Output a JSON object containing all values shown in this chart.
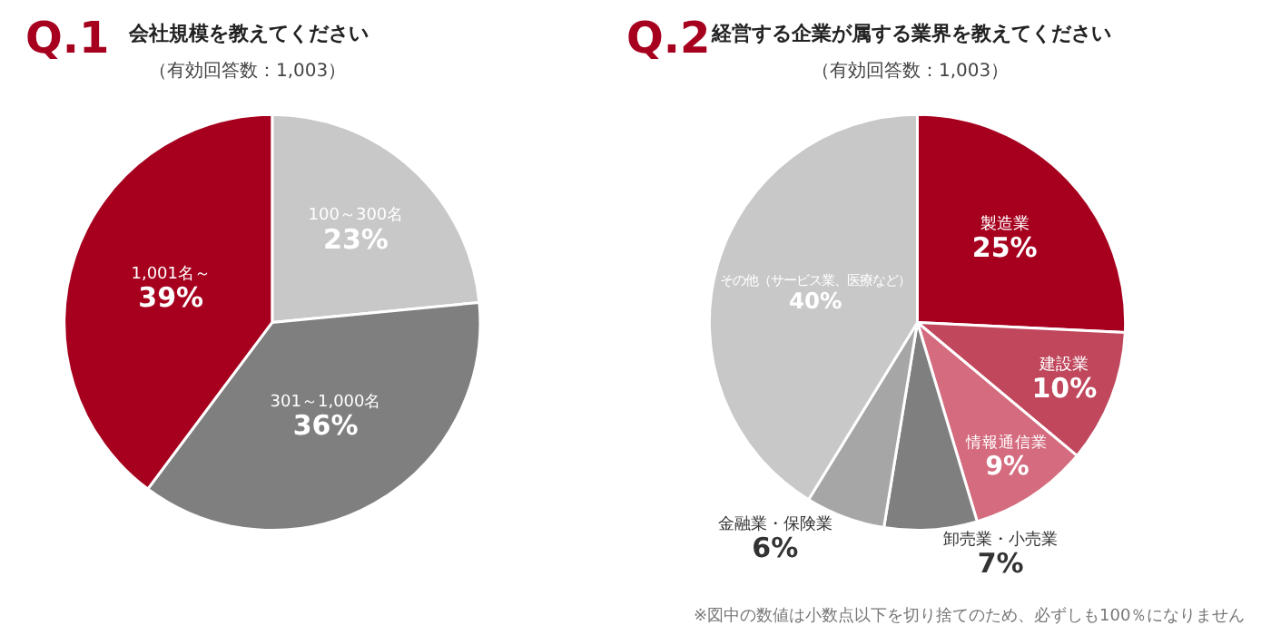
{
  "chart_data": [
    {
      "type": "pie",
      "title": "会社規模を教えてください",
      "subtitle": "（有効回答数：1,003）",
      "annotations": [
        "Q.1"
      ],
      "categories": [
        "100～300名",
        "301～1,000名",
        "1,001名～"
      ],
      "values": [
        23,
        36,
        39
      ],
      "value_labels": [
        "23%",
        "36%",
        "39%"
      ],
      "colors": [
        "#c8c8c8",
        "#7f7f7f",
        "#a6001e"
      ]
    },
    {
      "type": "pie",
      "title": "経営する企業が属する業界を教えてください",
      "subtitle": "（有効回答数：1,003）",
      "annotations": [
        "Q.2",
        "※図中の数値は小数点以下を切り捨てのため、必ずしも100％になりません"
      ],
      "categories": [
        "製造業",
        "建設業",
        "情報通信業",
        "卸売業・小売業",
        "金融業・保険業",
        "その他（サービス業、医療など）"
      ],
      "values": [
        25,
        10,
        9,
        7,
        6,
        40
      ],
      "value_labels": [
        "25%",
        "10%",
        "9%",
        "7%",
        "6%",
        "40%"
      ],
      "colors": [
        "#a6001e",
        "#c0475c",
        "#d46b7e",
        "#7f7f7f",
        "#a6a6a6",
        "#c8c8c8"
      ]
    }
  ]
}
